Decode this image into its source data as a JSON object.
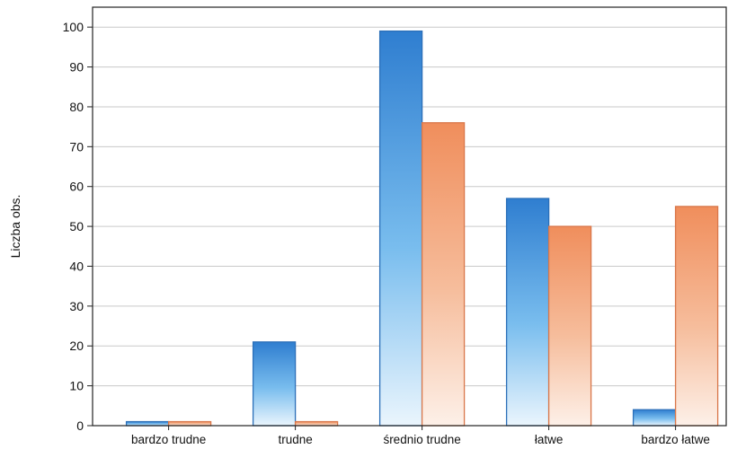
{
  "chart_data": {
    "type": "bar",
    "title": "",
    "xlabel": "",
    "ylabel": "Liczba obs.",
    "categories": [
      "bardzo trudne",
      "trudne",
      "średnio trudne",
      "łatwe",
      "bardzo łatwe"
    ],
    "series": [
      {
        "color": "#3a8ad9",
        "values": [
          1,
          21,
          99,
          57,
          4
        ]
      },
      {
        "color": "#ef9466",
        "values": [
          1,
          1,
          76,
          50,
          55
        ]
      }
    ],
    "ylim": [
      0,
      105
    ],
    "yticks": [
      0,
      10,
      20,
      30,
      40,
      50,
      60,
      70,
      80,
      90,
      100
    ],
    "grid": true,
    "legend": "none"
  }
}
